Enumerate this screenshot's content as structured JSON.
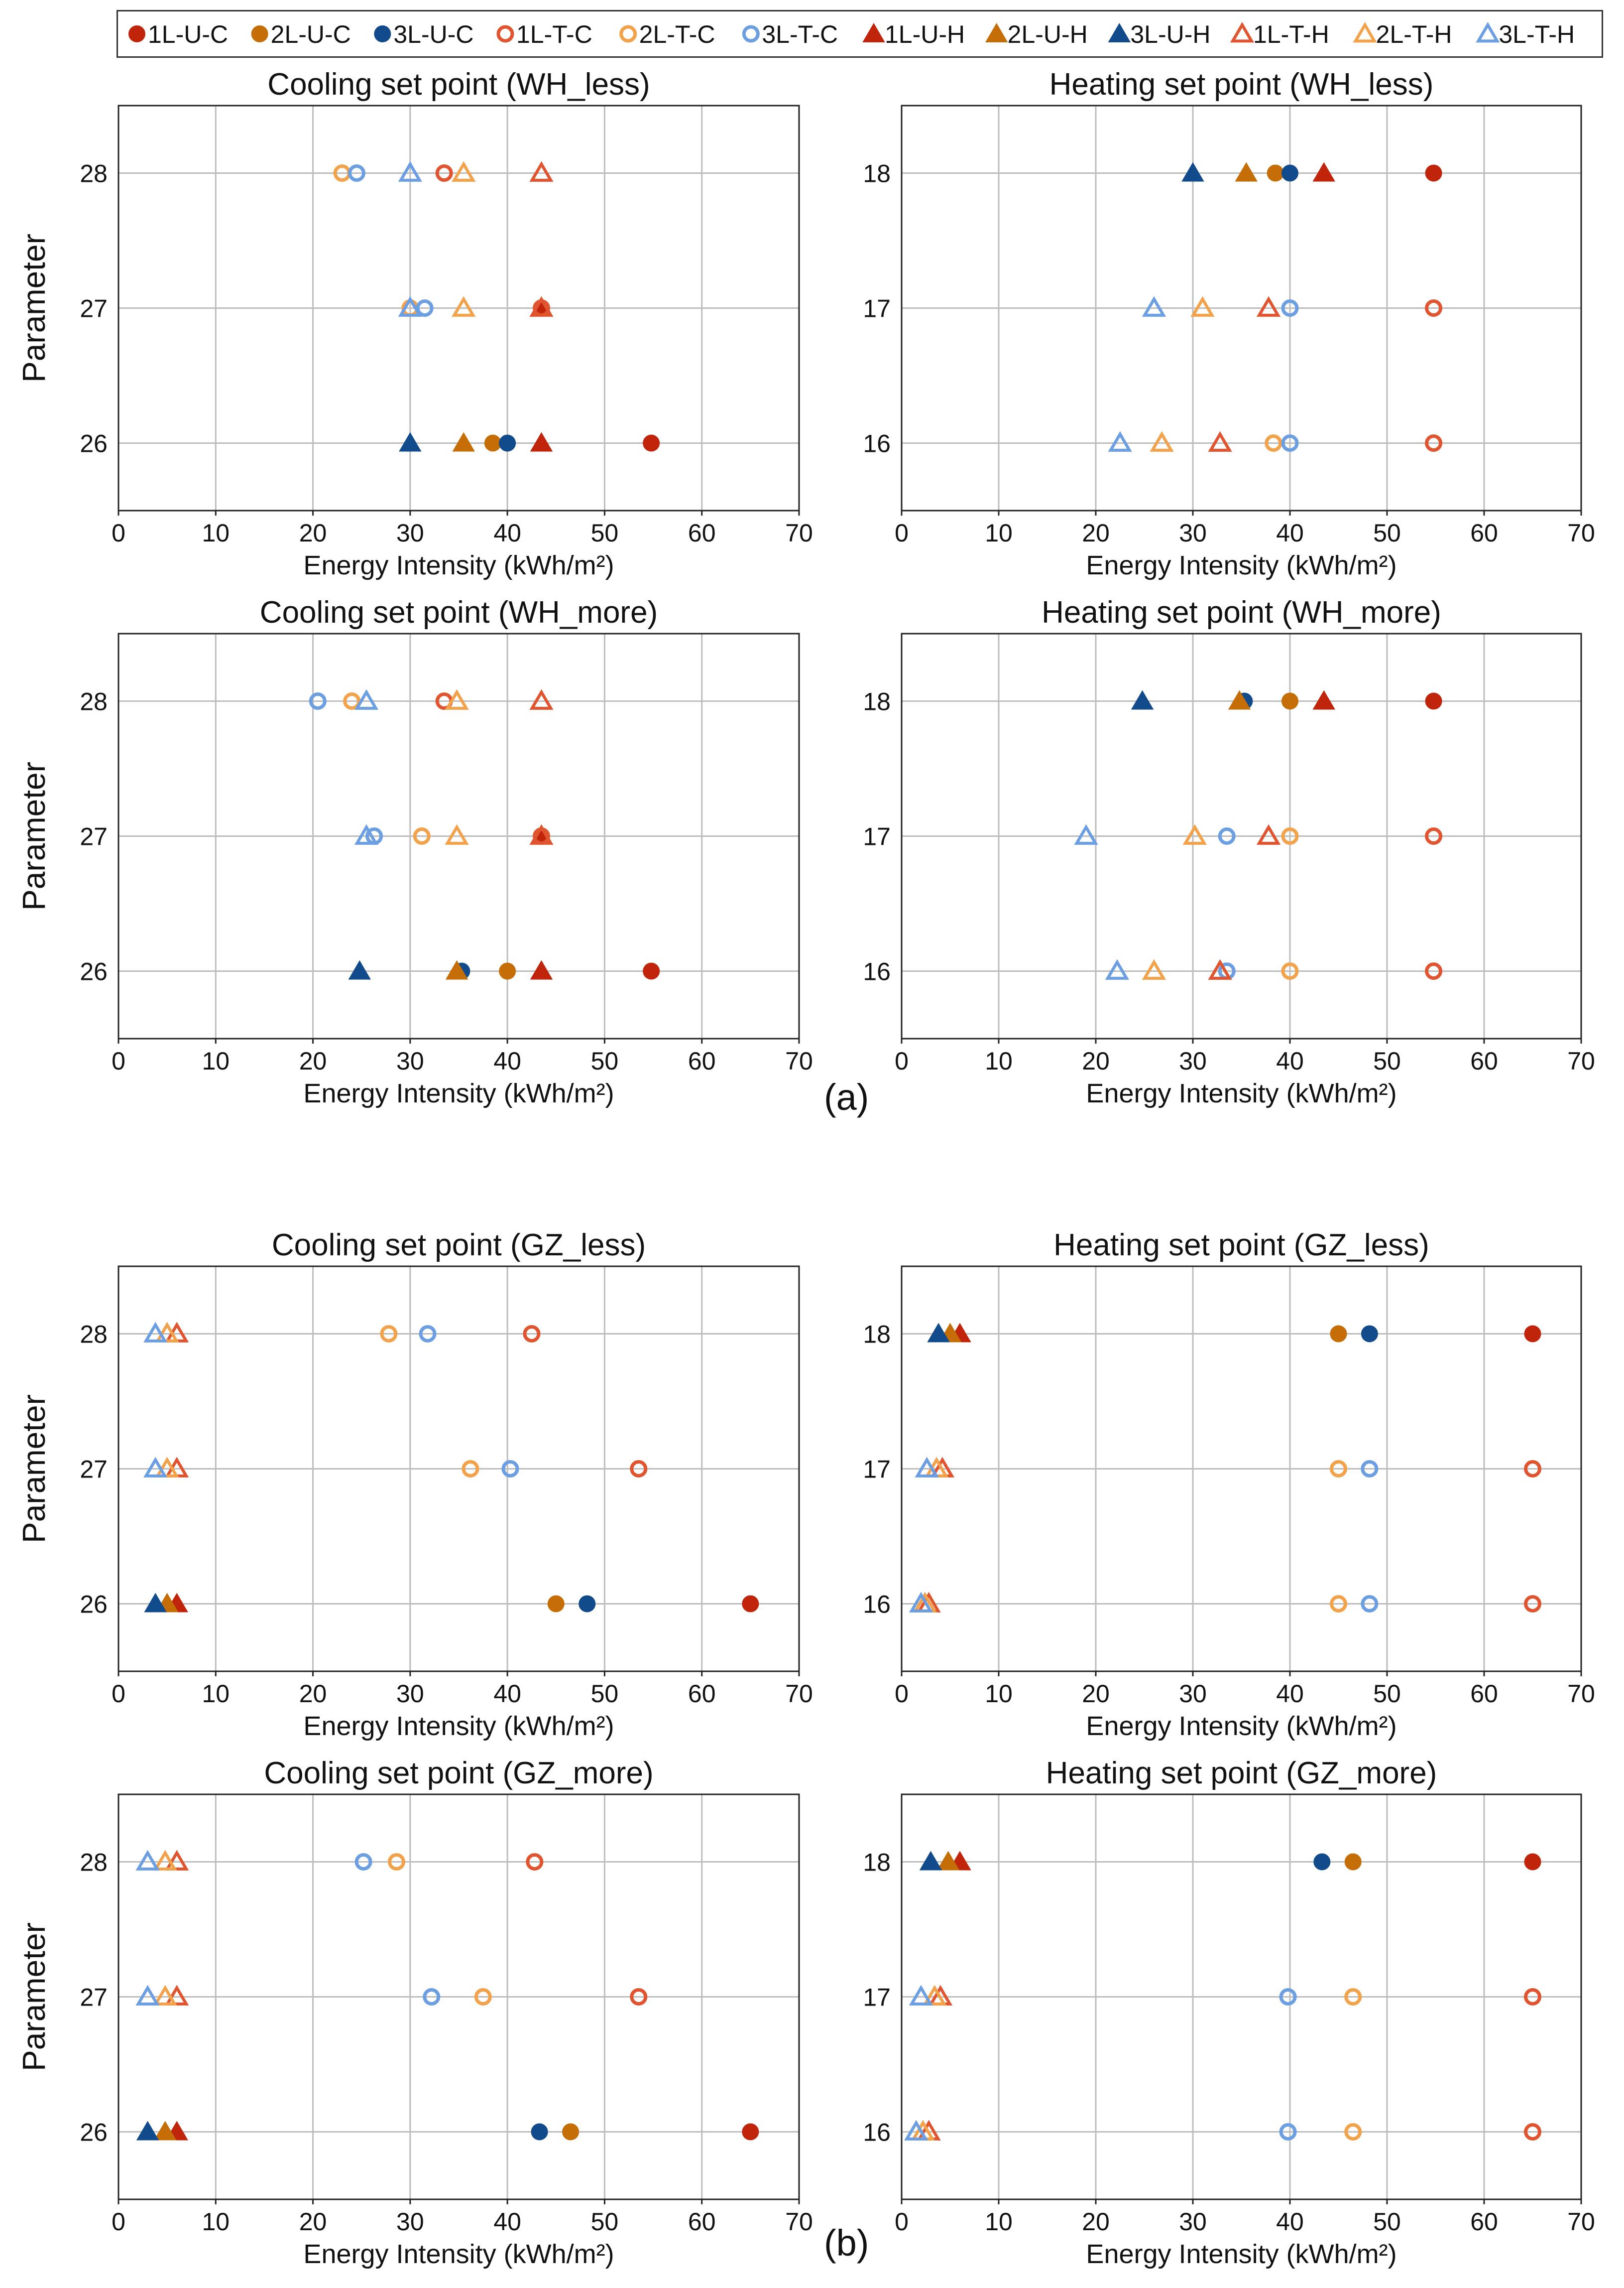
{
  "legend": [
    {
      "key": "1L-U-C",
      "label": "1L-U-C",
      "color": "#c0250b",
      "marker": "circle",
      "fill": "filled"
    },
    {
      "key": "2L-U-C",
      "label": "2L-U-C",
      "color": "#c56d07",
      "marker": "circle",
      "fill": "filled"
    },
    {
      "key": "3L-U-C",
      "label": "3L-U-C",
      "color": "#114b8c",
      "marker": "circle",
      "fill": "filled"
    },
    {
      "key": "1L-T-C",
      "label": "1L-T-C",
      "color": "#e0552f",
      "marker": "circle",
      "fill": "open"
    },
    {
      "key": "2L-T-C",
      "label": "2L-T-C",
      "color": "#f2a24a",
      "marker": "circle",
      "fill": "open"
    },
    {
      "key": "3L-T-C",
      "label": "3L-T-C",
      "color": "#6c9ee2",
      "marker": "circle",
      "fill": "open"
    },
    {
      "key": "1L-U-H",
      "label": "1L-U-H",
      "color": "#c0250b",
      "marker": "triangle",
      "fill": "filled"
    },
    {
      "key": "2L-U-H",
      "label": "2L-U-H",
      "color": "#c56d07",
      "marker": "triangle",
      "fill": "filled"
    },
    {
      "key": "3L-U-H",
      "label": "3L-U-H",
      "color": "#114b8c",
      "marker": "triangle",
      "fill": "filled"
    },
    {
      "key": "1L-T-H",
      "label": "1L-T-H",
      "color": "#e0552f",
      "marker": "triangle",
      "fill": "open"
    },
    {
      "key": "2L-T-H",
      "label": "2L-T-H",
      "color": "#f2a24a",
      "marker": "triangle",
      "fill": "open"
    },
    {
      "key": "3L-T-H",
      "label": "3L-T-H",
      "color": "#6c9ee2",
      "marker": "triangle",
      "fill": "open"
    }
  ],
  "figure_labels": {
    "a": "(a)",
    "b": "(b)"
  },
  "chart_data": [
    {
      "type": "scatter",
      "title": "Cooling set point (WH_less)",
      "xlabel": "Energy Intensity (kWh/m²)",
      "ylabel": "Parameter",
      "xlim": [
        0,
        70
      ],
      "xticks": [
        0,
        10,
        20,
        30,
        40,
        50,
        60,
        70
      ],
      "categories": [
        "26",
        "27",
        "28"
      ],
      "series": [
        {
          "name": "1L-U-C",
          "values": [
            54.8,
            43.5,
            null
          ]
        },
        {
          "name": "2L-U-C",
          "values": [
            38.5,
            null,
            null
          ]
        },
        {
          "name": "3L-U-C",
          "values": [
            40.0,
            null,
            null
          ]
        },
        {
          "name": "1L-T-C",
          "values": [
            null,
            43.5,
            33.5
          ]
        },
        {
          "name": "2L-T-C",
          "values": [
            null,
            30.0,
            23.0
          ]
        },
        {
          "name": "3L-T-C",
          "values": [
            null,
            31.5,
            24.5
          ]
        },
        {
          "name": "1L-U-H",
          "values": [
            43.5,
            null,
            null
          ]
        },
        {
          "name": "2L-U-H",
          "values": [
            35.5,
            null,
            null
          ]
        },
        {
          "name": "3L-U-H",
          "values": [
            30.0,
            null,
            null
          ]
        },
        {
          "name": "1L-T-H",
          "values": [
            null,
            43.5,
            43.5
          ]
        },
        {
          "name": "2L-T-H",
          "values": [
            null,
            35.5,
            35.5
          ]
        },
        {
          "name": "3L-T-H",
          "values": [
            null,
            30.0,
            30.0
          ]
        }
      ]
    },
    {
      "type": "scatter",
      "title": "Heating set point (WH_less)",
      "xlabel": "Energy Intensity (kWh/m²)",
      "ylabel": "",
      "xlim": [
        0,
        70
      ],
      "xticks": [
        0,
        10,
        20,
        30,
        40,
        50,
        60,
        70
      ],
      "categories": [
        "16",
        "17",
        "18"
      ],
      "series": [
        {
          "name": "1L-U-C",
          "values": [
            null,
            null,
            54.8
          ]
        },
        {
          "name": "2L-U-C",
          "values": [
            null,
            null,
            38.5
          ]
        },
        {
          "name": "3L-U-C",
          "values": [
            null,
            null,
            40.0
          ]
        },
        {
          "name": "1L-T-C",
          "values": [
            54.8,
            54.8,
            null
          ]
        },
        {
          "name": "2L-T-C",
          "values": [
            38.3,
            null,
            null
          ]
        },
        {
          "name": "3L-T-C",
          "values": [
            40.0,
            40.0,
            null
          ]
        },
        {
          "name": "1L-U-H",
          "values": [
            null,
            null,
            43.5
          ]
        },
        {
          "name": "2L-U-H",
          "values": [
            null,
            null,
            35.5
          ]
        },
        {
          "name": "3L-U-H",
          "values": [
            null,
            null,
            30.0
          ]
        },
        {
          "name": "1L-T-H",
          "values": [
            32.8,
            37.8,
            null
          ]
        },
        {
          "name": "2L-T-H",
          "values": [
            26.8,
            31.0,
            null
          ]
        },
        {
          "name": "3L-T-H",
          "values": [
            22.5,
            26.0,
            null
          ]
        }
      ]
    },
    {
      "type": "scatter",
      "title": "Cooling set point (WH_more)",
      "xlabel": "Energy Intensity (kWh/m²)",
      "ylabel": "Parameter",
      "xlim": [
        0,
        70
      ],
      "xticks": [
        0,
        10,
        20,
        30,
        40,
        50,
        60,
        70
      ],
      "categories": [
        "26",
        "27",
        "28"
      ],
      "series": [
        {
          "name": "1L-U-C",
          "values": [
            54.8,
            43.5,
            null
          ]
        },
        {
          "name": "2L-U-C",
          "values": [
            40.0,
            null,
            null
          ]
        },
        {
          "name": "3L-U-C",
          "values": [
            35.3,
            null,
            null
          ]
        },
        {
          "name": "1L-T-C",
          "values": [
            null,
            43.5,
            33.5
          ]
        },
        {
          "name": "2L-T-C",
          "values": [
            null,
            31.2,
            24.0
          ]
        },
        {
          "name": "3L-T-C",
          "values": [
            null,
            26.3,
            20.5
          ]
        },
        {
          "name": "1L-U-H",
          "values": [
            43.5,
            null,
            null
          ]
        },
        {
          "name": "2L-U-H",
          "values": [
            34.8,
            null,
            null
          ]
        },
        {
          "name": "3L-U-H",
          "values": [
            24.8,
            null,
            null
          ]
        },
        {
          "name": "1L-T-H",
          "values": [
            null,
            43.5,
            43.5
          ]
        },
        {
          "name": "2L-T-H",
          "values": [
            null,
            34.8,
            34.8
          ]
        },
        {
          "name": "3L-T-H",
          "values": [
            null,
            25.5,
            25.5
          ]
        }
      ]
    },
    {
      "type": "scatter",
      "title": "Heating set point (WH_more)",
      "xlabel": "Energy Intensity (kWh/m²)",
      "ylabel": "",
      "xlim": [
        0,
        70
      ],
      "xticks": [
        0,
        10,
        20,
        30,
        40,
        50,
        60,
        70
      ],
      "categories": [
        "16",
        "17",
        "18"
      ],
      "series": [
        {
          "name": "1L-U-C",
          "values": [
            null,
            null,
            54.8
          ]
        },
        {
          "name": "2L-U-C",
          "values": [
            null,
            null,
            40.0
          ]
        },
        {
          "name": "3L-U-C",
          "values": [
            null,
            null,
            35.3
          ]
        },
        {
          "name": "1L-T-C",
          "values": [
            54.8,
            54.8,
            null
          ]
        },
        {
          "name": "2L-T-C",
          "values": [
            40.0,
            40.0,
            null
          ]
        },
        {
          "name": "3L-T-C",
          "values": [
            33.5,
            33.5,
            null
          ]
        },
        {
          "name": "1L-U-H",
          "values": [
            null,
            null,
            43.5
          ]
        },
        {
          "name": "2L-U-H",
          "values": [
            null,
            null,
            34.8
          ]
        },
        {
          "name": "3L-U-H",
          "values": [
            null,
            null,
            24.8
          ]
        },
        {
          "name": "1L-T-H",
          "values": [
            32.8,
            37.8,
            null
          ]
        },
        {
          "name": "2L-T-H",
          "values": [
            26.0,
            30.2,
            null
          ]
        },
        {
          "name": "3L-T-H",
          "values": [
            22.2,
            19.0,
            null
          ]
        }
      ]
    },
    {
      "type": "scatter",
      "title": "Cooling set point (GZ_less)",
      "xlabel": "Energy Intensity (kWh/m²)",
      "ylabel": "Parameter",
      "xlim": [
        0,
        70
      ],
      "xticks": [
        0,
        10,
        20,
        30,
        40,
        50,
        60,
        70
      ],
      "categories": [
        "26",
        "27",
        "28"
      ],
      "series": [
        {
          "name": "1L-U-C",
          "values": [
            65.0,
            null,
            null
          ]
        },
        {
          "name": "2L-U-C",
          "values": [
            45.0,
            null,
            null
          ]
        },
        {
          "name": "3L-U-C",
          "values": [
            48.2,
            null,
            null
          ]
        },
        {
          "name": "1L-T-C",
          "values": [
            null,
            53.5,
            42.5
          ]
        },
        {
          "name": "2L-T-C",
          "values": [
            null,
            36.2,
            27.8
          ]
        },
        {
          "name": "3L-T-C",
          "values": [
            null,
            40.3,
            31.8
          ]
        },
        {
          "name": "1L-U-H",
          "values": [
            6.0,
            null,
            null
          ]
        },
        {
          "name": "2L-U-H",
          "values": [
            5.0,
            null,
            null
          ]
        },
        {
          "name": "3L-U-H",
          "values": [
            3.8,
            null,
            null
          ]
        },
        {
          "name": "1L-T-H",
          "values": [
            null,
            6.0,
            6.0
          ]
        },
        {
          "name": "2L-T-H",
          "values": [
            null,
            5.0,
            5.0
          ]
        },
        {
          "name": "3L-T-H",
          "values": [
            null,
            3.8,
            3.8
          ]
        }
      ]
    },
    {
      "type": "scatter",
      "title": "Heating set point (GZ_less)",
      "xlabel": "Energy Intensity (kWh/m²)",
      "ylabel": "",
      "xlim": [
        0,
        70
      ],
      "xticks": [
        0,
        10,
        20,
        30,
        40,
        50,
        60,
        70
      ],
      "categories": [
        "16",
        "17",
        "18"
      ],
      "series": [
        {
          "name": "1L-U-C",
          "values": [
            null,
            null,
            65.0
          ]
        },
        {
          "name": "2L-U-C",
          "values": [
            null,
            null,
            45.0
          ]
        },
        {
          "name": "3L-U-C",
          "values": [
            null,
            null,
            48.2
          ]
        },
        {
          "name": "1L-T-C",
          "values": [
            65.0,
            65.0,
            null
          ]
        },
        {
          "name": "2L-T-C",
          "values": [
            45.0,
            45.0,
            null
          ]
        },
        {
          "name": "3L-T-C",
          "values": [
            48.2,
            48.2,
            null
          ]
        },
        {
          "name": "1L-U-H",
          "values": [
            null,
            null,
            6.0
          ]
        },
        {
          "name": "2L-U-H",
          "values": [
            null,
            null,
            5.0
          ]
        },
        {
          "name": "3L-U-H",
          "values": [
            null,
            null,
            3.8
          ]
        },
        {
          "name": "1L-T-H",
          "values": [
            2.8,
            4.2,
            null
          ]
        },
        {
          "name": "2L-T-H",
          "values": [
            2.4,
            3.6,
            null
          ]
        },
        {
          "name": "3L-T-H",
          "values": [
            2.0,
            2.6,
            null
          ]
        }
      ]
    },
    {
      "type": "scatter",
      "title": "Cooling set point (GZ_more)",
      "xlabel": "Energy Intensity (kWh/m²)",
      "ylabel": "Parameter",
      "xlim": [
        0,
        70
      ],
      "xticks": [
        0,
        10,
        20,
        30,
        40,
        50,
        60,
        70
      ],
      "categories": [
        "26",
        "27",
        "28"
      ],
      "series": [
        {
          "name": "1L-U-C",
          "values": [
            65.0,
            null,
            null
          ]
        },
        {
          "name": "2L-U-C",
          "values": [
            46.5,
            null,
            null
          ]
        },
        {
          "name": "3L-U-C",
          "values": [
            43.3,
            null,
            null
          ]
        },
        {
          "name": "1L-T-C",
          "values": [
            null,
            53.5,
            42.8
          ]
        },
        {
          "name": "2L-T-C",
          "values": [
            null,
            37.5,
            28.6
          ]
        },
        {
          "name": "3L-T-C",
          "values": [
            null,
            32.2,
            25.2
          ]
        },
        {
          "name": "1L-U-H",
          "values": [
            6.0,
            null,
            null
          ]
        },
        {
          "name": "2L-U-H",
          "values": [
            4.8,
            null,
            null
          ]
        },
        {
          "name": "3L-U-H",
          "values": [
            3.0,
            null,
            null
          ]
        },
        {
          "name": "1L-T-H",
          "values": [
            null,
            6.0,
            6.0
          ]
        },
        {
          "name": "2L-T-H",
          "values": [
            null,
            4.8,
            4.8
          ]
        },
        {
          "name": "3L-T-H",
          "values": [
            null,
            3.0,
            3.0
          ]
        }
      ]
    },
    {
      "type": "scatter",
      "title": "Heating set point (GZ_more)",
      "xlabel": "Energy Intensity (kWh/m²)",
      "ylabel": "",
      "xlim": [
        0,
        70
      ],
      "xticks": [
        0,
        10,
        20,
        30,
        40,
        50,
        60,
        70
      ],
      "categories": [
        "16",
        "17",
        "18"
      ],
      "series": [
        {
          "name": "1L-U-C",
          "values": [
            null,
            null,
            65.0
          ]
        },
        {
          "name": "2L-U-C",
          "values": [
            null,
            null,
            46.5
          ]
        },
        {
          "name": "3L-U-C",
          "values": [
            null,
            null,
            43.3
          ]
        },
        {
          "name": "1L-T-C",
          "values": [
            65.0,
            65.0,
            null
          ]
        },
        {
          "name": "2L-T-C",
          "values": [
            46.5,
            46.5,
            null
          ]
        },
        {
          "name": "3L-T-C",
          "values": [
            39.8,
            39.8,
            null
          ]
        },
        {
          "name": "1L-U-H",
          "values": [
            null,
            null,
            6.0
          ]
        },
        {
          "name": "2L-U-H",
          "values": [
            null,
            null,
            4.8
          ]
        },
        {
          "name": "3L-U-H",
          "values": [
            null,
            null,
            3.0
          ]
        },
        {
          "name": "1L-T-H",
          "values": [
            2.8,
            4.0,
            null
          ]
        },
        {
          "name": "2L-T-H",
          "values": [
            2.2,
            3.4,
            null
          ]
        },
        {
          "name": "3L-T-H",
          "values": [
            1.5,
            2.0,
            null
          ]
        }
      ]
    }
  ]
}
